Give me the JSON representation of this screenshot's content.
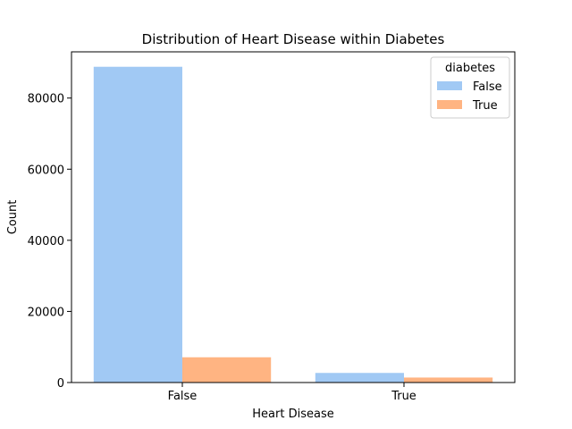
{
  "chart_data": {
    "type": "bar",
    "title": "Distribution of Heart Disease within Diabetes",
    "xlabel": "Heart Disease",
    "ylabel": "Count",
    "categories": [
      "False",
      "True"
    ],
    "series": [
      {
        "name": "False",
        "color": "#a1c9f4",
        "values": [
          88800,
          2700
        ]
      },
      {
        "name": "True",
        "color": "#ffb482",
        "values": [
          7100,
          1400
        ]
      }
    ],
    "ylim": [
      0,
      93000
    ],
    "yticks": [
      0,
      20000,
      40000,
      60000,
      80000
    ],
    "legend": {
      "title": "diabetes",
      "placement": "top-right"
    },
    "grid": false
  }
}
